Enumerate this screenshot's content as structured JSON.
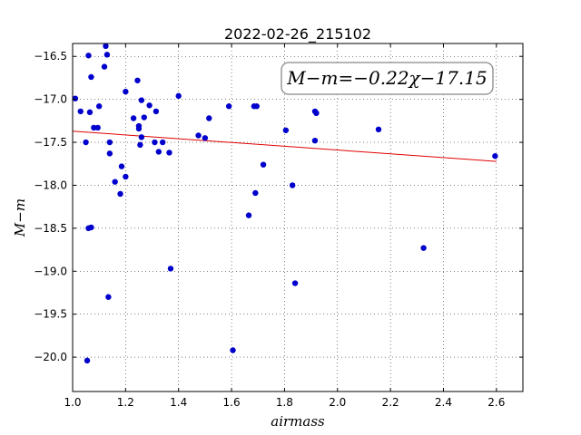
{
  "chart_data": {
    "type": "scatter",
    "title": "2022-02-26_215102",
    "xlabel": "airmass",
    "ylabel": "M−m",
    "xlim": [
      1.0,
      2.7
    ],
    "ylim": [
      -20.4,
      -16.35
    ],
    "y_inverted": true,
    "grid": true,
    "grid_style": "dotted",
    "xticks": [
      1.0,
      1.2,
      1.4,
      1.6,
      1.8,
      2.0,
      2.2,
      2.4,
      2.6
    ],
    "xtick_labels": [
      "1.0",
      "1.2",
      "1.4",
      "1.6",
      "1.8",
      "2.0",
      "2.2",
      "2.4",
      "2.6"
    ],
    "yticks": [
      -16.5,
      -17.0,
      -17.5,
      -18.0,
      -18.5,
      -19.0,
      -19.5,
      -20.0
    ],
    "ytick_labels": [
      "−16.5",
      "−17.0",
      "−17.5",
      "−18.0",
      "−18.5",
      "−19.0",
      "−19.5",
      "−20.0"
    ],
    "annotation": "M−m=−0.22χ−17.15",
    "fit": {
      "slope": -0.22,
      "intercept": -17.15,
      "x_range": [
        1.0,
        2.6
      ],
      "color": "#e00000"
    },
    "point_color": "#0000cc",
    "series": [
      {
        "points": [
          [
            1.01,
            -16.99
          ],
          [
            1.03,
            -17.14
          ],
          [
            1.05,
            -17.5
          ],
          [
            1.06,
            -16.49
          ],
          [
            1.065,
            -17.15
          ],
          [
            1.07,
            -16.74
          ],
          [
            1.08,
            -17.33
          ],
          [
            1.095,
            -17.33
          ],
          [
            1.1,
            -17.08
          ],
          [
            1.06,
            -18.5
          ],
          [
            1.07,
            -18.49
          ],
          [
            1.055,
            -20.04
          ],
          [
            1.12,
            -16.62
          ],
          [
            1.125,
            -16.38
          ],
          [
            1.13,
            -16.48
          ],
          [
            1.14,
            -17.5
          ],
          [
            1.14,
            -17.63
          ],
          [
            1.135,
            -19.3
          ],
          [
            1.16,
            -17.96
          ],
          [
            1.18,
            -18.1
          ],
          [
            1.185,
            -17.78
          ],
          [
            1.2,
            -16.91
          ],
          [
            1.2,
            -17.9
          ],
          [
            1.23,
            -17.22
          ],
          [
            1.245,
            -16.78
          ],
          [
            1.25,
            -17.31
          ],
          [
            1.25,
            -17.34
          ],
          [
            1.255,
            -17.53
          ],
          [
            1.26,
            -17.44
          ],
          [
            1.26,
            -17.01
          ],
          [
            1.27,
            -17.21
          ],
          [
            1.29,
            -17.07
          ],
          [
            1.31,
            -17.5
          ],
          [
            1.315,
            -17.14
          ],
          [
            1.325,
            -17.61
          ],
          [
            1.34,
            -17.5
          ],
          [
            1.365,
            -17.62
          ],
          [
            1.37,
            -18.97
          ],
          [
            1.4,
            -16.96
          ],
          [
            1.475,
            -17.42
          ],
          [
            1.5,
            -17.45
          ],
          [
            1.515,
            -17.22
          ],
          [
            1.59,
            -17.08
          ],
          [
            1.605,
            -19.92
          ],
          [
            1.665,
            -18.35
          ],
          [
            1.685,
            -17.08
          ],
          [
            1.69,
            -18.09
          ],
          [
            1.695,
            -17.08
          ],
          [
            1.72,
            -17.76
          ],
          [
            1.805,
            -17.36
          ],
          [
            1.83,
            -18.0
          ],
          [
            1.84,
            -19.14
          ],
          [
            1.915,
            -17.14
          ],
          [
            1.915,
            -17.48
          ],
          [
            1.92,
            -17.16
          ],
          [
            2.155,
            -17.35
          ],
          [
            2.325,
            -18.73
          ],
          [
            2.595,
            -17.66
          ]
        ]
      }
    ]
  }
}
